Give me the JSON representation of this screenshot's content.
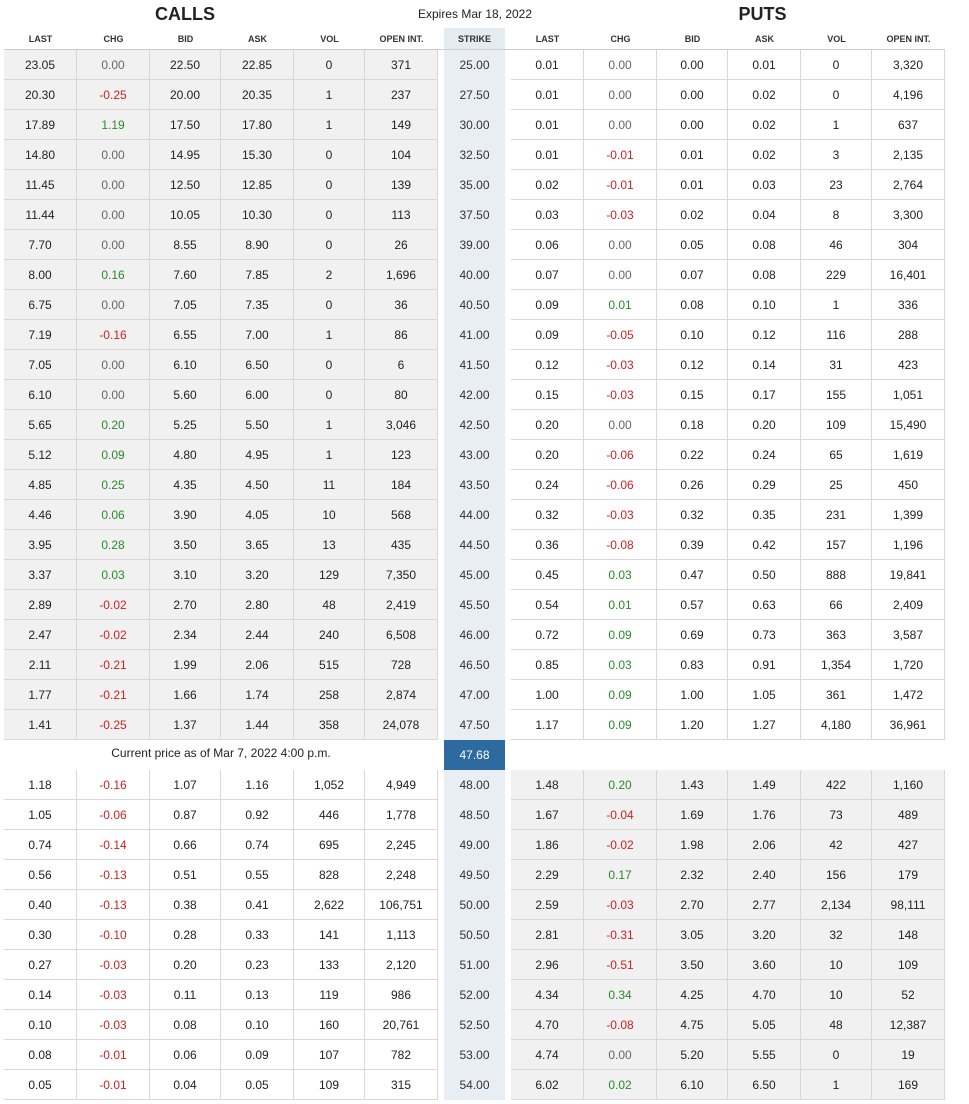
{
  "header": {
    "calls_title": "CALLS",
    "expires": "Expires Mar 18, 2022",
    "puts_title": "PUTS"
  },
  "columns": {
    "calls": [
      "LAST",
      "CHG",
      "BID",
      "ASK",
      "VOL",
      "OPEN INT."
    ],
    "strike": "STRIKE",
    "puts": [
      "LAST",
      "CHG",
      "BID",
      "ASK",
      "VOL",
      "OPEN INT."
    ]
  },
  "current": {
    "label": "Current price as of Mar 7, 2022 4:00 p.m.",
    "price": "47.68"
  },
  "colors": {
    "positive": "#2a8a2a",
    "negative": "#cc2222",
    "current_bg": "#2c6aa0"
  },
  "rows_above": [
    {
      "strike": "25.00",
      "calls": [
        "23.05",
        "0.00",
        "22.50",
        "22.85",
        "0",
        "371"
      ],
      "puts": [
        "0.01",
        "0.00",
        "0.00",
        "0.01",
        "0",
        "3,320"
      ]
    },
    {
      "strike": "27.50",
      "calls": [
        "20.30",
        "-0.25",
        "20.00",
        "20.35",
        "1",
        "237"
      ],
      "puts": [
        "0.01",
        "0.00",
        "0.00",
        "0.02",
        "0",
        "4,196"
      ]
    },
    {
      "strike": "30.00",
      "calls": [
        "17.89",
        "1.19",
        "17.50",
        "17.80",
        "1",
        "149"
      ],
      "puts": [
        "0.01",
        "0.00",
        "0.00",
        "0.02",
        "1",
        "637"
      ]
    },
    {
      "strike": "32.50",
      "calls": [
        "14.80",
        "0.00",
        "14.95",
        "15.30",
        "0",
        "104"
      ],
      "puts": [
        "0.01",
        "-0.01",
        "0.01",
        "0.02",
        "3",
        "2,135"
      ]
    },
    {
      "strike": "35.00",
      "calls": [
        "11.45",
        "0.00",
        "12.50",
        "12.85",
        "0",
        "139"
      ],
      "puts": [
        "0.02",
        "-0.01",
        "0.01",
        "0.03",
        "23",
        "2,764"
      ]
    },
    {
      "strike": "37.50",
      "calls": [
        "11.44",
        "0.00",
        "10.05",
        "10.30",
        "0",
        "113"
      ],
      "puts": [
        "0.03",
        "-0.03",
        "0.02",
        "0.04",
        "8",
        "3,300"
      ]
    },
    {
      "strike": "39.00",
      "calls": [
        "7.70",
        "0.00",
        "8.55",
        "8.90",
        "0",
        "26"
      ],
      "puts": [
        "0.06",
        "0.00",
        "0.05",
        "0.08",
        "46",
        "304"
      ]
    },
    {
      "strike": "40.00",
      "calls": [
        "8.00",
        "0.16",
        "7.60",
        "7.85",
        "2",
        "1,696"
      ],
      "puts": [
        "0.07",
        "0.00",
        "0.07",
        "0.08",
        "229",
        "16,401"
      ]
    },
    {
      "strike": "40.50",
      "calls": [
        "6.75",
        "0.00",
        "7.05",
        "7.35",
        "0",
        "36"
      ],
      "puts": [
        "0.09",
        "0.01",
        "0.08",
        "0.10",
        "1",
        "336"
      ]
    },
    {
      "strike": "41.00",
      "calls": [
        "7.19",
        "-0.16",
        "6.55",
        "7.00",
        "1",
        "86"
      ],
      "puts": [
        "0.09",
        "-0.05",
        "0.10",
        "0.12",
        "116",
        "288"
      ]
    },
    {
      "strike": "41.50",
      "calls": [
        "7.05",
        "0.00",
        "6.10",
        "6.50",
        "0",
        "6"
      ],
      "puts": [
        "0.12",
        "-0.03",
        "0.12",
        "0.14",
        "31",
        "423"
      ]
    },
    {
      "strike": "42.00",
      "calls": [
        "6.10",
        "0.00",
        "5.60",
        "6.00",
        "0",
        "80"
      ],
      "puts": [
        "0.15",
        "-0.03",
        "0.15",
        "0.17",
        "155",
        "1,051"
      ]
    },
    {
      "strike": "42.50",
      "calls": [
        "5.65",
        "0.20",
        "5.25",
        "5.50",
        "1",
        "3,046"
      ],
      "puts": [
        "0.20",
        "0.00",
        "0.18",
        "0.20",
        "109",
        "15,490"
      ]
    },
    {
      "strike": "43.00",
      "calls": [
        "5.12",
        "0.09",
        "4.80",
        "4.95",
        "1",
        "123"
      ],
      "puts": [
        "0.20",
        "-0.06",
        "0.22",
        "0.24",
        "65",
        "1,619"
      ]
    },
    {
      "strike": "43.50",
      "calls": [
        "4.85",
        "0.25",
        "4.35",
        "4.50",
        "11",
        "184"
      ],
      "puts": [
        "0.24",
        "-0.06",
        "0.26",
        "0.29",
        "25",
        "450"
      ]
    },
    {
      "strike": "44.00",
      "calls": [
        "4.46",
        "0.06",
        "3.90",
        "4.05",
        "10",
        "568"
      ],
      "puts": [
        "0.32",
        "-0.03",
        "0.32",
        "0.35",
        "231",
        "1,399"
      ]
    },
    {
      "strike": "44.50",
      "calls": [
        "3.95",
        "0.28",
        "3.50",
        "3.65",
        "13",
        "435"
      ],
      "puts": [
        "0.36",
        "-0.08",
        "0.39",
        "0.42",
        "157",
        "1,196"
      ]
    },
    {
      "strike": "45.00",
      "calls": [
        "3.37",
        "0.03",
        "3.10",
        "3.20",
        "129",
        "7,350"
      ],
      "puts": [
        "0.45",
        "0.03",
        "0.47",
        "0.50",
        "888",
        "19,841"
      ]
    },
    {
      "strike": "45.50",
      "calls": [
        "2.89",
        "-0.02",
        "2.70",
        "2.80",
        "48",
        "2,419"
      ],
      "puts": [
        "0.54",
        "0.01",
        "0.57",
        "0.63",
        "66",
        "2,409"
      ]
    },
    {
      "strike": "46.00",
      "calls": [
        "2.47",
        "-0.02",
        "2.34",
        "2.44",
        "240",
        "6,508"
      ],
      "puts": [
        "0.72",
        "0.09",
        "0.69",
        "0.73",
        "363",
        "3,587"
      ]
    },
    {
      "strike": "46.50",
      "calls": [
        "2.11",
        "-0.21",
        "1.99",
        "2.06",
        "515",
        "728"
      ],
      "puts": [
        "0.85",
        "0.03",
        "0.83",
        "0.91",
        "1,354",
        "1,720"
      ]
    },
    {
      "strike": "47.00",
      "calls": [
        "1.77",
        "-0.21",
        "1.66",
        "1.74",
        "258",
        "2,874"
      ],
      "puts": [
        "1.00",
        "0.09",
        "1.00",
        "1.05",
        "361",
        "1,472"
      ]
    },
    {
      "strike": "47.50",
      "calls": [
        "1.41",
        "-0.25",
        "1.37",
        "1.44",
        "358",
        "24,078"
      ],
      "puts": [
        "1.17",
        "0.09",
        "1.20",
        "1.27",
        "4,180",
        "36,961"
      ]
    }
  ],
  "rows_below": [
    {
      "strike": "48.00",
      "calls": [
        "1.18",
        "-0.16",
        "1.07",
        "1.16",
        "1,052",
        "4,949"
      ],
      "puts": [
        "1.48",
        "0.20",
        "1.43",
        "1.49",
        "422",
        "1,160"
      ]
    },
    {
      "strike": "48.50",
      "calls": [
        "1.05",
        "-0.06",
        "0.87",
        "0.92",
        "446",
        "1,778"
      ],
      "puts": [
        "1.67",
        "-0.04",
        "1.69",
        "1.76",
        "73",
        "489"
      ]
    },
    {
      "strike": "49.00",
      "calls": [
        "0.74",
        "-0.14",
        "0.66",
        "0.74",
        "695",
        "2,245"
      ],
      "puts": [
        "1.86",
        "-0.02",
        "1.98",
        "2.06",
        "42",
        "427"
      ]
    },
    {
      "strike": "49.50",
      "calls": [
        "0.56",
        "-0.13",
        "0.51",
        "0.55",
        "828",
        "2,248"
      ],
      "puts": [
        "2.29",
        "0.17",
        "2.32",
        "2.40",
        "156",
        "179"
      ]
    },
    {
      "strike": "50.00",
      "calls": [
        "0.40",
        "-0.13",
        "0.38",
        "0.41",
        "2,622",
        "106,751"
      ],
      "puts": [
        "2.59",
        "-0.03",
        "2.70",
        "2.77",
        "2,134",
        "98,111"
      ]
    },
    {
      "strike": "50.50",
      "calls": [
        "0.30",
        "-0.10",
        "0.28",
        "0.33",
        "141",
        "1,113"
      ],
      "puts": [
        "2.81",
        "-0.31",
        "3.05",
        "3.20",
        "32",
        "148"
      ]
    },
    {
      "strike": "51.00",
      "calls": [
        "0.27",
        "-0.03",
        "0.20",
        "0.23",
        "133",
        "2,120"
      ],
      "puts": [
        "2.96",
        "-0.51",
        "3.50",
        "3.60",
        "10",
        "109"
      ]
    },
    {
      "strike": "52.00",
      "calls": [
        "0.14",
        "-0.03",
        "0.11",
        "0.13",
        "119",
        "986"
      ],
      "puts": [
        "4.34",
        "0.34",
        "4.25",
        "4.70",
        "10",
        "52"
      ]
    },
    {
      "strike": "52.50",
      "calls": [
        "0.10",
        "-0.03",
        "0.08",
        "0.10",
        "160",
        "20,761"
      ],
      "puts": [
        "4.70",
        "-0.08",
        "4.75",
        "5.05",
        "48",
        "12,387"
      ]
    },
    {
      "strike": "53.00",
      "calls": [
        "0.08",
        "-0.01",
        "0.06",
        "0.09",
        "107",
        "782"
      ],
      "puts": [
        "4.74",
        "0.00",
        "5.20",
        "5.55",
        "0",
        "19"
      ]
    },
    {
      "strike": "54.00",
      "calls": [
        "0.05",
        "-0.01",
        "0.04",
        "0.05",
        "109",
        "315"
      ],
      "puts": [
        "6.02",
        "0.02",
        "6.10",
        "6.50",
        "1",
        "169"
      ]
    }
  ]
}
